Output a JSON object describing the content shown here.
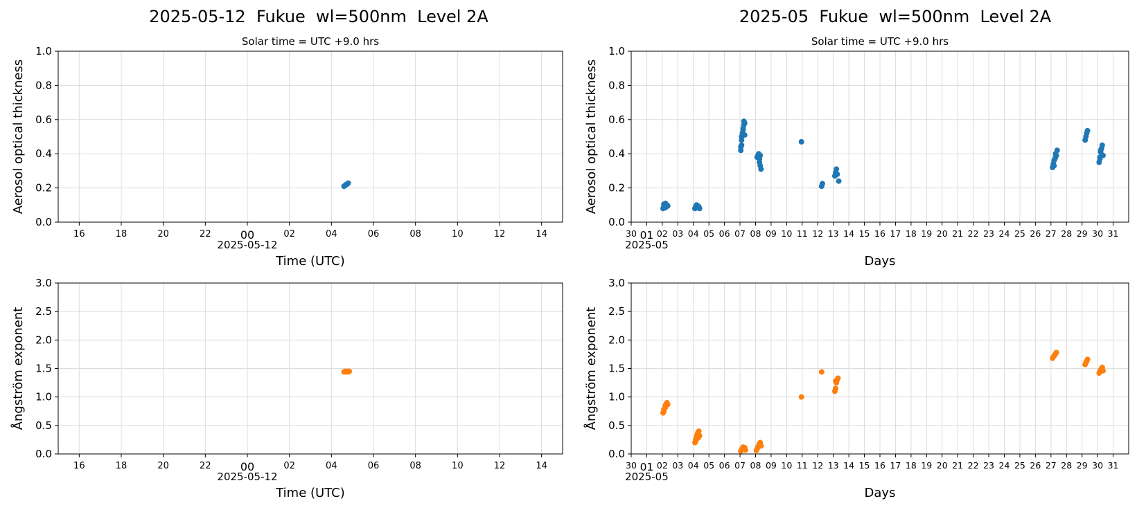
{
  "chart_data": [
    {
      "id": "tl",
      "type": "scatter",
      "title": "2025-05-12  Fukue  wl=500nm  Level 2A",
      "subtitle": "Solar time = UTC +9.0 hrs",
      "xlabel": "Time (UTC)",
      "ylabel": "Aerosol optical thickness",
      "xlim": [
        15,
        39
      ],
      "ylim": [
        0,
        1.0
      ],
      "xticks": [
        16,
        18,
        20,
        22,
        24,
        26,
        28,
        30,
        32,
        34,
        36,
        38
      ],
      "xtick_labels": [
        "16",
        "18",
        "20",
        "22",
        "00",
        "02",
        "04",
        "06",
        "08",
        "10",
        "12",
        "14"
      ],
      "x_offset_label": "2025-05-12",
      "yticks": [
        0.0,
        0.2,
        0.4,
        0.6,
        0.8,
        1.0
      ],
      "ytick_labels": [
        "0.0",
        "0.2",
        "0.4",
        "0.6",
        "0.8",
        "1.0"
      ],
      "grid": true,
      "color": "#1f77b4",
      "x": [
        28.6,
        28.65,
        28.7,
        28.75,
        28.8
      ],
      "y": [
        0.21,
        0.215,
        0.22,
        0.222,
        0.228
      ]
    },
    {
      "id": "tr",
      "type": "scatter",
      "title": "2025-05  Fukue  wl=500nm  Level 2A",
      "subtitle": "Solar time = UTC +9.0 hrs",
      "xlabel": "Days",
      "ylabel": "Aerosol optical thickness",
      "xlim": [
        0,
        32
      ],
      "ylim": [
        0,
        1.0
      ],
      "xticks": [
        0,
        1,
        2,
        3,
        4,
        5,
        6,
        7,
        8,
        9,
        10,
        11,
        12,
        13,
        14,
        15,
        16,
        17,
        18,
        19,
        20,
        21,
        22,
        23,
        24,
        25,
        26,
        27,
        28,
        29,
        30,
        31
      ],
      "xtick_labels": [
        "30",
        "01",
        "02",
        "03",
        "04",
        "05",
        "06",
        "07",
        "08",
        "09",
        "10",
        "11",
        "12",
        "13",
        "14",
        "15",
        "16",
        "17",
        "18",
        "19",
        "20",
        "21",
        "22",
        "23",
        "24",
        "25",
        "26",
        "27",
        "28",
        "29",
        "30",
        "31"
      ],
      "x_offset_label": "2025-05",
      "yticks": [
        0.0,
        0.2,
        0.4,
        0.6,
        0.8,
        1.0
      ],
      "ytick_labels": [
        "0.0",
        "0.2",
        "0.4",
        "0.6",
        "0.8",
        "1.0"
      ],
      "grid": true,
      "color": "#1f77b4",
      "x": [
        2.05,
        2.1,
        2.15,
        2.2,
        2.25,
        2.3,
        2.35,
        2.1,
        2.2,
        2.3,
        4.1,
        4.15,
        4.2,
        4.25,
        4.3,
        4.35,
        4.4,
        7.05,
        7.1,
        7.1,
        7.15,
        7.2,
        7.2,
        7.25,
        7.25,
        7.3,
        7.3,
        7.05,
        7.1,
        8.1,
        8.15,
        8.2,
        8.25,
        8.3,
        8.35,
        8.25,
        8.3,
        10.95,
        12.25,
        12.3,
        13.1,
        13.15,
        13.2,
        13.25,
        13.35,
        27.1,
        27.15,
        27.2,
        27.25,
        27.3,
        27.35,
        27.4,
        27.2,
        27.3,
        29.2,
        29.25,
        29.3,
        29.35,
        30.1,
        30.15,
        30.2,
        30.25,
        30.3,
        30.35,
        30.2,
        30.15
      ],
      "y": [
        0.08,
        0.09,
        0.1,
        0.11,
        0.09,
        0.1,
        0.095,
        0.105,
        0.085,
        0.1,
        0.08,
        0.09,
        0.1,
        0.085,
        0.095,
        0.09,
        0.08,
        0.42,
        0.45,
        0.5,
        0.52,
        0.54,
        0.55,
        0.57,
        0.59,
        0.58,
        0.51,
        0.44,
        0.48,
        0.38,
        0.39,
        0.4,
        0.35,
        0.33,
        0.31,
        0.37,
        0.39,
        0.47,
        0.21,
        0.225,
        0.27,
        0.29,
        0.31,
        0.28,
        0.24,
        0.32,
        0.34,
        0.36,
        0.37,
        0.38,
        0.39,
        0.42,
        0.33,
        0.4,
        0.48,
        0.5,
        0.52,
        0.535,
        0.35,
        0.38,
        0.41,
        0.43,
        0.45,
        0.39,
        0.42,
        0.37
      ]
    },
    {
      "id": "bl",
      "type": "scatter",
      "xlabel": "Time (UTC)",
      "ylabel": "Ångström exponent",
      "xlim": [
        15,
        39
      ],
      "ylim": [
        0,
        3.0
      ],
      "xticks": [
        16,
        18,
        20,
        22,
        24,
        26,
        28,
        30,
        32,
        34,
        36,
        38
      ],
      "xtick_labels": [
        "16",
        "18",
        "20",
        "22",
        "00",
        "02",
        "04",
        "06",
        "08",
        "10",
        "12",
        "14"
      ],
      "x_offset_label": "2025-05-12",
      "yticks": [
        0.0,
        0.5,
        1.0,
        1.5,
        2.0,
        2.5,
        3.0
      ],
      "ytick_labels": [
        "0.0",
        "0.5",
        "1.0",
        "1.5",
        "2.0",
        "2.5",
        "3.0"
      ],
      "grid": true,
      "color": "#ff7f0e",
      "x": [
        28.6,
        28.65,
        28.7,
        28.75,
        28.8,
        28.85
      ],
      "y": [
        1.44,
        1.45,
        1.44,
        1.45,
        1.44,
        1.45
      ]
    },
    {
      "id": "br",
      "type": "scatter",
      "xlabel": "Days",
      "ylabel": "Ångström exponent",
      "xlim": [
        0,
        32
      ],
      "ylim": [
        0,
        3.0
      ],
      "xticks": [
        0,
        1,
        2,
        3,
        4,
        5,
        6,
        7,
        8,
        9,
        10,
        11,
        12,
        13,
        14,
        15,
        16,
        17,
        18,
        19,
        20,
        21,
        22,
        23,
        24,
        25,
        26,
        27,
        28,
        29,
        30,
        31
      ],
      "xtick_labels": [
        "30",
        "01",
        "02",
        "03",
        "04",
        "05",
        "06",
        "07",
        "08",
        "09",
        "10",
        "11",
        "12",
        "13",
        "14",
        "15",
        "16",
        "17",
        "18",
        "19",
        "20",
        "21",
        "22",
        "23",
        "24",
        "25",
        "26",
        "27",
        "28",
        "29",
        "30",
        "31"
      ],
      "x_offset_label": "2025-05",
      "yticks": [
        0.0,
        0.5,
        1.0,
        1.5,
        2.0,
        2.5,
        3.0
      ],
      "ytick_labels": [
        "0.0",
        "0.5",
        "1.0",
        "1.5",
        "2.0",
        "2.5",
        "3.0"
      ],
      "grid": true,
      "color": "#ff7f0e",
      "x": [
        2.05,
        2.1,
        2.15,
        2.2,
        2.25,
        2.3,
        2.35,
        2.1,
        2.2,
        4.1,
        4.15,
        4.2,
        4.25,
        4.3,
        4.35,
        4.4,
        4.15,
        4.3,
        7.05,
        7.1,
        7.15,
        7.2,
        7.25,
        7.3,
        7.35,
        8.05,
        8.1,
        8.15,
        8.2,
        8.25,
        8.3,
        8.35,
        10.95,
        12.25,
        13.1,
        13.15,
        13.2,
        13.25,
        13.3,
        13.15,
        27.1,
        27.15,
        27.2,
        27.25,
        27.3,
        27.35,
        29.2,
        29.25,
        29.3,
        29.35,
        30.1,
        30.15,
        30.2,
        30.25,
        30.3,
        30.35
      ],
      "y": [
        0.72,
        0.75,
        0.8,
        0.85,
        0.88,
        0.9,
        0.87,
        0.78,
        0.82,
        0.2,
        0.25,
        0.3,
        0.35,
        0.38,
        0.4,
        0.32,
        0.22,
        0.28,
        0.05,
        0.08,
        0.1,
        0.12,
        0.09,
        0.11,
        0.07,
        0.06,
        0.09,
        0.12,
        0.15,
        0.18,
        0.2,
        0.14,
        1.0,
        1.44,
        1.1,
        1.15,
        1.25,
        1.3,
        1.33,
        1.28,
        1.68,
        1.7,
        1.72,
        1.74,
        1.76,
        1.78,
        1.57,
        1.6,
        1.63,
        1.66,
        1.42,
        1.45,
        1.48,
        1.5,
        1.52,
        1.46
      ]
    }
  ]
}
